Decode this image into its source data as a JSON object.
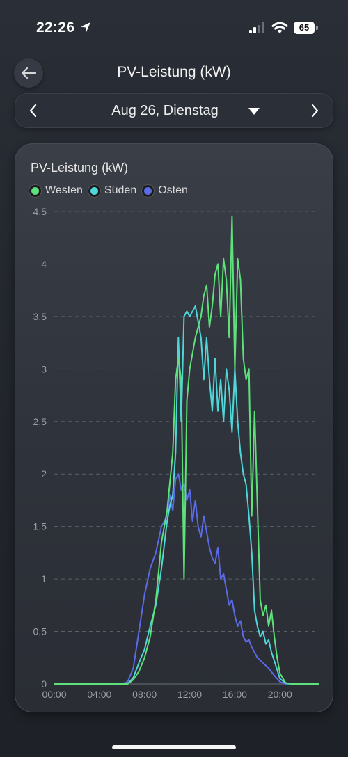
{
  "status_bar": {
    "time": "22:26",
    "battery": "65",
    "icons": [
      "location-arrow-icon",
      "cellular-signal-icon",
      "wifi-icon",
      "battery-icon"
    ]
  },
  "header": {
    "title": "PV-Leistung (kW)",
    "back_icon": "arrow-left-icon"
  },
  "date_bar": {
    "label": "Aug 26, Dienstag",
    "prev_icon": "chevron-left-icon",
    "next_icon": "chevron-right-icon",
    "caret_icon": "caret-down-icon"
  },
  "card": {
    "title": "PV-Leistung (kW)"
  },
  "chart_data": {
    "type": "line",
    "title": "PV-Leistung (kW)",
    "xlabel": "",
    "ylabel": "",
    "xlim": [
      "00:00",
      "23:30"
    ],
    "ylim": [
      0,
      4.5
    ],
    "grid": true,
    "legend_position": "top-left",
    "x_ticks": [
      "00:00",
      "04:00",
      "08:00",
      "12:00",
      "16:00",
      "20:00"
    ],
    "y_ticks": [
      "0",
      "0,5",
      "1",
      "1,5",
      "2",
      "2,5",
      "3",
      "3,5",
      "4",
      "4,5"
    ],
    "series": [
      {
        "name": "Westen",
        "color": "#5ee07a",
        "points": [
          [
            "00:00",
            0
          ],
          [
            "06:30",
            0
          ],
          [
            "07:00",
            0.04
          ],
          [
            "07:30",
            0.12
          ],
          [
            "08:00",
            0.25
          ],
          [
            "08:30",
            0.45
          ],
          [
            "09:00",
            0.8
          ],
          [
            "09:30",
            1.35
          ],
          [
            "10:00",
            1.65
          ],
          [
            "10:30",
            2.2
          ],
          [
            "10:45",
            2.9
          ],
          [
            "11:00",
            3.1
          ],
          [
            "11:15",
            2.9
          ],
          [
            "11:30",
            1.0
          ],
          [
            "11:45",
            2.7
          ],
          [
            "12:00",
            3.0
          ],
          [
            "12:30",
            3.3
          ],
          [
            "13:00",
            3.5
          ],
          [
            "13:15",
            3.7
          ],
          [
            "13:30",
            3.8
          ],
          [
            "13:45",
            3.4
          ],
          [
            "14:00",
            3.6
          ],
          [
            "14:15",
            3.9
          ],
          [
            "14:30",
            4.0
          ],
          [
            "14:45",
            3.5
          ],
          [
            "15:00",
            4.05
          ],
          [
            "15:15",
            3.85
          ],
          [
            "15:30",
            3.3
          ],
          [
            "15:45",
            4.45
          ],
          [
            "16:00",
            3.0
          ],
          [
            "16:15",
            4.05
          ],
          [
            "16:30",
            3.85
          ],
          [
            "16:45",
            3.1
          ],
          [
            "17:00",
            2.9
          ],
          [
            "17:15",
            3.0
          ],
          [
            "17:30",
            1.6
          ],
          [
            "17:45",
            2.6
          ],
          [
            "18:00",
            1.7
          ],
          [
            "18:15",
            0.8
          ],
          [
            "18:30",
            0.65
          ],
          [
            "18:45",
            0.75
          ],
          [
            "19:00",
            0.55
          ],
          [
            "19:15",
            0.7
          ],
          [
            "19:30",
            0.45
          ],
          [
            "19:45",
            0.25
          ],
          [
            "20:00",
            0.1
          ],
          [
            "20:30",
            0.01
          ],
          [
            "21:00",
            0
          ],
          [
            "23:30",
            0
          ]
        ]
      },
      {
        "name": "Süden",
        "color": "#4fd6d9",
        "points": [
          [
            "00:00",
            0
          ],
          [
            "06:30",
            0
          ],
          [
            "07:00",
            0.06
          ],
          [
            "07:30",
            0.2
          ],
          [
            "08:00",
            0.33
          ],
          [
            "08:30",
            0.55
          ],
          [
            "09:00",
            0.75
          ],
          [
            "09:30",
            1.1
          ],
          [
            "10:00",
            1.55
          ],
          [
            "10:15",
            1.7
          ],
          [
            "10:30",
            1.8
          ],
          [
            "10:45",
            2.2
          ],
          [
            "11:00",
            3.3
          ],
          [
            "11:15",
            2.5
          ],
          [
            "11:30",
            3.5
          ],
          [
            "11:45",
            3.55
          ],
          [
            "12:00",
            3.5
          ],
          [
            "12:30",
            3.6
          ],
          [
            "13:00",
            3.3
          ],
          [
            "13:15",
            2.9
          ],
          [
            "13:30",
            3.3
          ],
          [
            "13:45",
            2.9
          ],
          [
            "14:00",
            2.6
          ],
          [
            "14:15",
            3.1
          ],
          [
            "14:30",
            2.6
          ],
          [
            "14:45",
            2.9
          ],
          [
            "15:00",
            2.5
          ],
          [
            "15:15",
            3.0
          ],
          [
            "15:30",
            2.8
          ],
          [
            "15:45",
            2.4
          ],
          [
            "16:00",
            3.0
          ],
          [
            "16:15",
            2.5
          ],
          [
            "16:30",
            2.2
          ],
          [
            "16:45",
            2.0
          ],
          [
            "17:00",
            1.9
          ],
          [
            "17:15",
            1.6
          ],
          [
            "17:30",
            1.25
          ],
          [
            "17:45",
            0.7
          ],
          [
            "18:00",
            0.55
          ],
          [
            "18:15",
            0.45
          ],
          [
            "18:30",
            0.5
          ],
          [
            "18:45",
            0.38
          ],
          [
            "19:00",
            0.42
          ],
          [
            "19:15",
            0.3
          ],
          [
            "19:30",
            0.22
          ],
          [
            "20:00",
            0.05
          ],
          [
            "20:30",
            0.01
          ],
          [
            "21:00",
            0
          ],
          [
            "23:30",
            0
          ]
        ]
      },
      {
        "name": "Osten",
        "color": "#5b6be8",
        "points": [
          [
            "00:00",
            0
          ],
          [
            "06:00",
            0
          ],
          [
            "06:30",
            0.02
          ],
          [
            "07:00",
            0.15
          ],
          [
            "07:30",
            0.5
          ],
          [
            "08:00",
            0.85
          ],
          [
            "08:30",
            1.1
          ],
          [
            "09:00",
            1.25
          ],
          [
            "09:30",
            1.5
          ],
          [
            "10:00",
            1.6
          ],
          [
            "10:15",
            1.8
          ],
          [
            "10:30",
            1.65
          ],
          [
            "10:45",
            1.95
          ],
          [
            "11:00",
            2.0
          ],
          [
            "11:15",
            1.85
          ],
          [
            "11:30",
            1.9
          ],
          [
            "11:45",
            1.75
          ],
          [
            "12:00",
            1.85
          ],
          [
            "12:15",
            1.55
          ],
          [
            "12:30",
            1.75
          ],
          [
            "12:45",
            1.5
          ],
          [
            "13:00",
            1.4
          ],
          [
            "13:15",
            1.6
          ],
          [
            "13:30",
            1.45
          ],
          [
            "13:45",
            1.3
          ],
          [
            "14:00",
            1.2
          ],
          [
            "14:15",
            1.15
          ],
          [
            "14:30",
            1.3
          ],
          [
            "14:45",
            1.0
          ],
          [
            "15:00",
            1.05
          ],
          [
            "15:15",
            0.9
          ],
          [
            "15:30",
            0.75
          ],
          [
            "15:45",
            0.8
          ],
          [
            "16:00",
            0.65
          ],
          [
            "16:15",
            0.55
          ],
          [
            "16:30",
            0.6
          ],
          [
            "16:45",
            0.45
          ],
          [
            "17:00",
            0.4
          ],
          [
            "17:15",
            0.42
          ],
          [
            "17:30",
            0.35
          ],
          [
            "17:45",
            0.3
          ],
          [
            "18:00",
            0.25
          ],
          [
            "18:30",
            0.2
          ],
          [
            "19:00",
            0.15
          ],
          [
            "19:30",
            0.08
          ],
          [
            "20:00",
            0.02
          ],
          [
            "20:30",
            0
          ],
          [
            "23:30",
            0
          ]
        ]
      }
    ]
  }
}
